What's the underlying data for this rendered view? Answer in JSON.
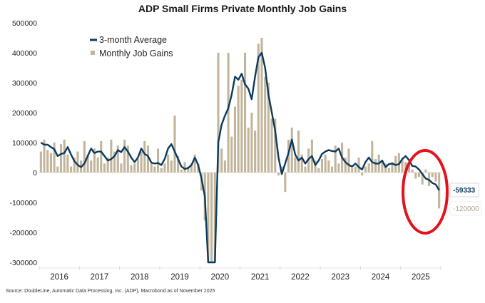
{
  "chart_data": {
    "type": "bar",
    "title": "ADP Small Firms Private Monthly Job Gains",
    "xlabel": "",
    "ylabel": "",
    "ylim": [
      -300000,
      500000
    ],
    "yticks": [
      500000,
      400000,
      300000,
      200000,
      100000,
      0,
      -100000,
      -200000,
      -300000
    ],
    "ytick_labels": [
      "500000",
      "400000",
      "300000",
      "200000",
      "100000",
      "0",
      "-100000",
      "-200000",
      "-300000"
    ],
    "xticks": [
      "2016",
      "2017",
      "2018",
      "2019",
      "2020",
      "2021",
      "2022",
      "2023",
      "2024",
      "2025"
    ],
    "x_start": "2016-01",
    "x_end": "2025-10",
    "grid": false,
    "legend_position": "top-left",
    "series": [
      {
        "name": "3-month Average",
        "type": "line",
        "color": "#0b3a5e",
        "values": [
          100000,
          93000,
          93000,
          85000,
          78000,
          55000,
          62000,
          65000,
          85000,
          60000,
          38000,
          25000,
          18000,
          30000,
          55000,
          80000,
          65000,
          70000,
          70000,
          55000,
          40000,
          45000,
          55000,
          75000,
          68000,
          85000,
          70000,
          50000,
          35000,
          50000,
          80000,
          62000,
          55000,
          33000,
          30000,
          32000,
          25000,
          45000,
          80000,
          95000,
          70000,
          45000,
          20000,
          12000,
          15000,
          25000,
          50000,
          25000,
          -20000,
          -80000,
          -300000,
          -300000,
          -300000,
          100000,
          160000,
          190000,
          215000,
          260000,
          320000,
          310000,
          330000,
          295000,
          280000,
          245000,
          320000,
          385000,
          400000,
          350000,
          260000,
          200000,
          140000,
          50000,
          -5000,
          30000,
          65000,
          110000,
          60000,
          40000,
          50000,
          30000,
          45000,
          55000,
          25000,
          40000,
          62000,
          70000,
          75000,
          72000,
          70000,
          80000,
          50000,
          35000,
          25000,
          20000,
          30000,
          18000,
          10000,
          35000,
          50000,
          35000,
          30000,
          30000,
          40000,
          18000,
          28000,
          30000,
          25000,
          28000,
          45000,
          55000,
          42000,
          22000,
          20000,
          10000,
          -5000,
          -20000,
          -25000,
          -35000,
          -40000,
          -59333
        ]
      },
      {
        "name": "Monthly Job Gains",
        "type": "bar",
        "color": "#c2b59b",
        "values": [
          70000,
          110000,
          75000,
          65000,
          100000,
          20000,
          95000,
          110000,
          60000,
          20000,
          50000,
          70000,
          40000,
          105000,
          60000,
          40000,
          80000,
          50000,
          105000,
          30000,
          50000,
          110000,
          70000,
          90000,
          30000,
          110000,
          90000,
          25000,
          30000,
          45000,
          70000,
          105000,
          90000,
          30000,
          20000,
          80000,
          15000,
          30000,
          60000,
          40000,
          190000,
          55000,
          10000,
          35000,
          20000,
          30000,
          60000,
          30000,
          -60000,
          -160000,
          -300000,
          -300000,
          -300000,
          400000,
          80000,
          40000,
          400000,
          120000,
          220000,
          290000,
          310000,
          400000,
          150000,
          200000,
          140000,
          430000,
          450000,
          320000,
          300000,
          180000,
          180000,
          -10000,
          20000,
          -65000,
          110000,
          150000,
          50000,
          140000,
          60000,
          20000,
          80000,
          110000,
          40000,
          15000,
          45000,
          60000,
          40000,
          20000,
          90000,
          30000,
          100000,
          50000,
          80000,
          15000,
          20000,
          50000,
          -10000,
          20000,
          30000,
          105000,
          45000,
          60000,
          40000,
          30000,
          15000,
          35000,
          55000,
          65000,
          50000,
          35000,
          25000,
          10000,
          -20000,
          -15000,
          -40000,
          10000,
          -45000,
          -15000,
          -30000,
          -120000
        ]
      }
    ],
    "annotations": [
      {
        "text": "-59333",
        "series": "3-month Average",
        "color": "#0b3a5e"
      },
      {
        "text": "-120000",
        "series": "Monthly Job Gains",
        "color": "#b0a48a"
      },
      {
        "type": "ellipse",
        "color": "#e3121b",
        "note": "highlight around recent 2025 declines"
      }
    ]
  },
  "legend": {
    "line_label": "3-month Average",
    "bar_label": "Monthly Job Gains"
  },
  "source": "Source: DoubleLine, Automatic Data Processing, Inc. (ADP), Macrobond as of November 2025"
}
